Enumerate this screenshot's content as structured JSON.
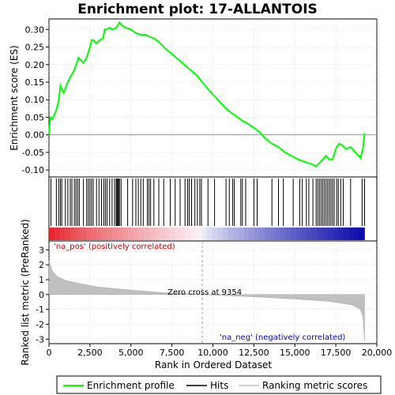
{
  "chart_data": {
    "type": "line",
    "title": "Enrichment plot: 17-ALLANTOIS",
    "ylabel_top": "Enrichment score (ES)",
    "ylabel_bottom": "Ranked list metric (PreRanked)",
    "xlabel": "Rank in Ordered Dataset",
    "xlim": [
      0,
      20000
    ],
    "x_ticks": [
      "0",
      "2,500",
      "5,000",
      "7,500",
      "10,000",
      "12,500",
      "15,000",
      "17,500",
      "20,000"
    ],
    "x_tick_values": [
      0,
      2500,
      5000,
      7500,
      10000,
      12500,
      15000,
      17500,
      20000
    ],
    "es_ylim": [
      -0.12,
      0.33
    ],
    "es_ticks": [
      "-0.10",
      "-0.05",
      "0.00",
      "0.05",
      "0.10",
      "0.15",
      "0.20",
      "0.25",
      "0.30"
    ],
    "es_tick_values": [
      -0.1,
      -0.05,
      0.0,
      0.05,
      0.1,
      0.15,
      0.2,
      0.25,
      0.3
    ],
    "metric_ylim": [
      -3.3,
      3.6
    ],
    "metric_ticks": [
      "-3",
      "-2",
      "-1",
      "0",
      "1",
      "2",
      "3"
    ],
    "metric_tick_values": [
      -3,
      -2,
      -1,
      0,
      1,
      2,
      3
    ],
    "series": [
      {
        "name": "Enrichment profile",
        "color": "#00ff00",
        "x": [
          0,
          80,
          200,
          450,
          600,
          700,
          900,
          1100,
          1300,
          1500,
          1700,
          1800,
          2100,
          2300,
          2500,
          2600,
          2700,
          2900,
          3100,
          3300,
          3400,
          3500,
          3700,
          3900,
          4100,
          4300,
          4500,
          4700,
          5000,
          5300,
          5600,
          5900,
          6100,
          6400,
          6700,
          7000,
          7500,
          8000,
          8500,
          9000,
          9354,
          9800,
          10300,
          10800,
          11200,
          11500,
          11800,
          12200,
          12500,
          12800,
          13200,
          13600,
          14000,
          14400,
          14800,
          15200,
          15500,
          15800,
          16100,
          16300,
          16500,
          16700,
          16900,
          17100,
          17300,
          17500,
          17700,
          17900,
          18100,
          18400,
          18700,
          19000,
          19150,
          19250
        ],
        "y": [
          0.0,
          0.05,
          0.045,
          0.07,
          0.1,
          0.14,
          0.12,
          0.145,
          0.165,
          0.18,
          0.205,
          0.22,
          0.205,
          0.22,
          0.25,
          0.27,
          0.27,
          0.26,
          0.27,
          0.275,
          0.3,
          0.3,
          0.305,
          0.3,
          0.305,
          0.32,
          0.31,
          0.305,
          0.3,
          0.29,
          0.285,
          0.285,
          0.28,
          0.275,
          0.265,
          0.25,
          0.23,
          0.21,
          0.19,
          0.17,
          0.15,
          0.125,
          0.1,
          0.075,
          0.06,
          0.05,
          0.04,
          0.03,
          0.02,
          0.01,
          -0.01,
          -0.025,
          -0.035,
          -0.05,
          -0.06,
          -0.07,
          -0.075,
          -0.08,
          -0.085,
          -0.09,
          -0.08,
          -0.07,
          -0.06,
          -0.07,
          -0.07,
          -0.04,
          -0.025,
          -0.03,
          -0.04,
          -0.035,
          -0.05,
          -0.065,
          -0.04,
          0.005
        ]
      }
    ],
    "hits_x": [
      120,
      450,
      600,
      700,
      780,
      1000,
      1150,
      1300,
      1400,
      1550,
      1650,
      1750,
      1850,
      2100,
      2300,
      2400,
      2500,
      2600,
      2700,
      2900,
      3050,
      3200,
      3350,
      3450,
      3550,
      3700,
      3850,
      4000,
      4100,
      4150,
      4200,
      4250,
      4300,
      4400,
      4800,
      5100,
      5300,
      5450,
      5600,
      5750,
      6000,
      6100,
      6200,
      6400,
      6700,
      7000,
      7400,
      7700,
      8000,
      8300,
      8450,
      8550,
      8700,
      8900,
      9050,
      9200,
      9300,
      9700,
      10100,
      10800,
      11000,
      11200,
      11300,
      11700,
      11800,
      12000,
      12500,
      12700,
      13600,
      14000,
      14300,
      14900,
      15300,
      15450,
      15700,
      15850,
      16100,
      16300,
      16400,
      16500,
      16600,
      16700,
      16800,
      16900,
      17000,
      17100,
      17200,
      17300,
      17400,
      17550,
      17650,
      17800,
      17950,
      18400,
      19100,
      19250
    ],
    "zero_cross": 9354,
    "zero_cross_label": "Zero cross at 9354",
    "pos_label": "'na_pos' (positively correlated)",
    "neg_label": "'na_neg' (negatively correlated)",
    "metric_profile_x": [
      0,
      200,
      500,
      1000,
      2000,
      3000,
      5000,
      7000,
      9354,
      11000,
      13000,
      15000,
      17000,
      18500,
      19000,
      19150,
      19250
    ],
    "metric_profile_y": [
      2.3,
      1.6,
      1.2,
      0.95,
      0.7,
      0.5,
      0.3,
      0.12,
      0.0,
      -0.08,
      -0.18,
      -0.3,
      -0.45,
      -0.7,
      -1.0,
      -1.5,
      -3.1
    ],
    "legend": [
      {
        "label": "Enrichment profile",
        "color": "#00ff00"
      },
      {
        "label": "Hits",
        "color": "#000000"
      },
      {
        "label": "Ranking metric scores",
        "color": "#c0c0c0"
      }
    ],
    "colors": {
      "profile": "#00ff00",
      "pos_text": "#cc0000",
      "neg_text": "#0000cc",
      "metric_fill": "#c0c0c0",
      "grid": "#bbbbbb"
    }
  }
}
